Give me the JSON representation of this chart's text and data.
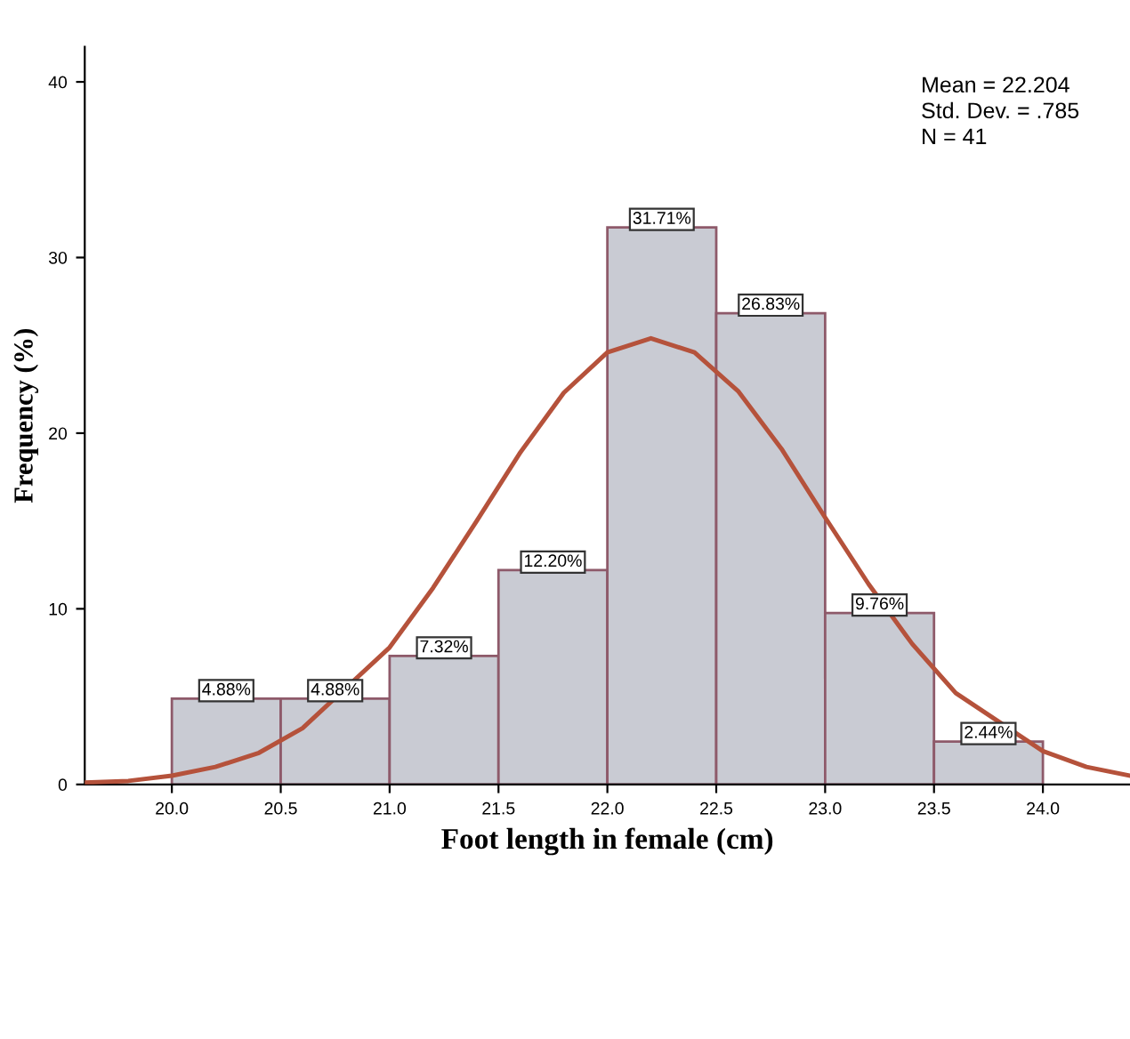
{
  "chart_data": {
    "type": "histogram",
    "xlabel": "Foot length in female (cm)",
    "ylabel": "Frequency (%)",
    "bins": [
      20.0,
      20.5,
      21.0,
      21.5,
      22.0,
      22.5,
      23.0,
      23.5,
      24.0
    ],
    "values": [
      4.88,
      4.88,
      7.32,
      12.2,
      31.71,
      26.83,
      9.76,
      2.44
    ],
    "value_labels": [
      "4.88%",
      "4.88%",
      "7.32%",
      "12.20%",
      "31.71%",
      "26.83%",
      "9.76%",
      "2.44%"
    ],
    "color": "#c9cbd3",
    "series": [
      {
        "type": "line",
        "color": "#b5523b",
        "x": [
          19.6,
          19.8,
          20.0,
          20.2,
          20.4,
          20.6,
          21.0,
          21.2,
          21.4,
          21.6,
          21.8,
          22.0,
          22.2,
          22.4,
          22.6,
          22.8,
          23.0,
          23.2,
          23.4,
          23.6,
          24.0,
          24.2,
          24.4
        ],
        "values": [
          0.1,
          0.2,
          0.5,
          1.0,
          1.8,
          3.2,
          7.8,
          11.2,
          15.0,
          18.9,
          22.3,
          24.6,
          25.4,
          24.6,
          22.4,
          19.1,
          15.2,
          11.4,
          8.0,
          5.2,
          1.9,
          1.0,
          0.5
        ]
      }
    ],
    "annotations": [
      "Mean = 22.204",
      "Std. Dev. = .785",
      "N = 41"
    ],
    "xlim": [
      19.6,
      24.4
    ],
    "ylim": [
      0,
      42
    ],
    "xticks": [
      {
        "value": 20.0,
        "label": "20.0"
      },
      {
        "value": 20.5,
        "label": "20.5"
      },
      {
        "value": 21.0,
        "label": "21.0"
      },
      {
        "value": 21.5,
        "label": "21.5"
      },
      {
        "value": 22.0,
        "label": "22.0"
      },
      {
        "value": 22.5,
        "label": "22.5"
      },
      {
        "value": 23.0,
        "label": "23.0"
      },
      {
        "value": 23.5,
        "label": "23.5"
      },
      {
        "value": 24.0,
        "label": "24.0"
      }
    ],
    "yticks": [
      0,
      10,
      20,
      30,
      40
    ],
    "grid": false,
    "legend": false
  }
}
